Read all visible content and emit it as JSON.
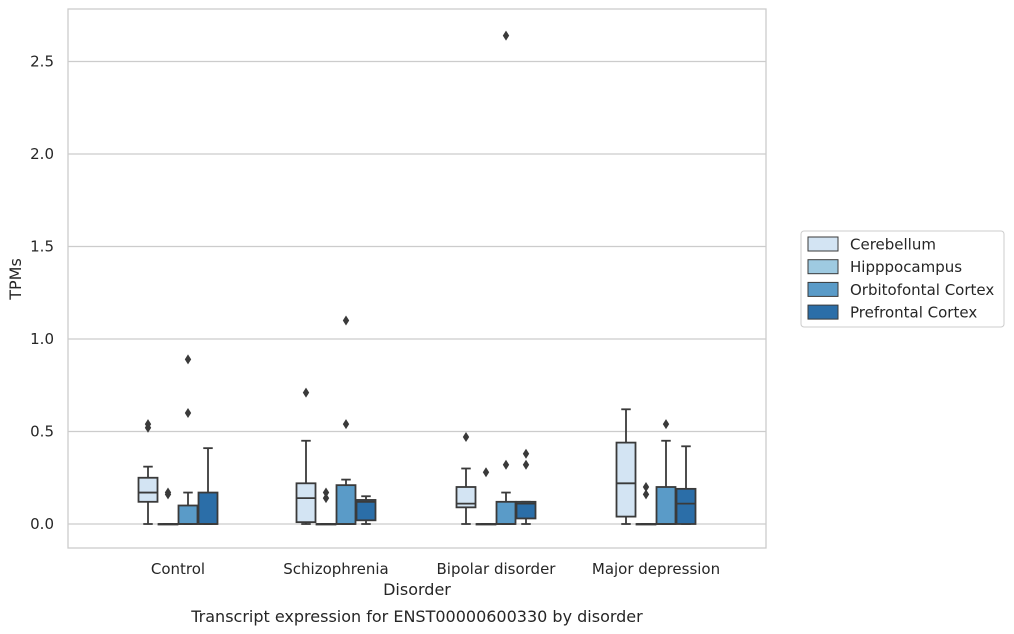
{
  "chart_data": {
    "type": "box",
    "title": "",
    "xlabel": "Disorder",
    "ylabel": "TPMs",
    "caption": "Transcript expression for ENST00000600330 by disorder",
    "ylim": [
      -0.13,
      2.78
    ],
    "yticks": [
      "0.0",
      "0.5",
      "1.0",
      "1.5",
      "2.0",
      "2.5"
    ],
    "grid": "horizontal",
    "legend_position": "right",
    "categories": [
      "Control",
      "Schizophrenia",
      "Bipolar disorder",
      "Major depression"
    ],
    "series": [
      {
        "name": "Cerebellum",
        "color": "#d3e4f3",
        "boxes": [
          {
            "whisker_low": 0.0,
            "q1": 0.12,
            "median": 0.17,
            "q3": 0.25,
            "whisker_high": 0.31,
            "outliers": [
              0.52,
              0.54
            ]
          },
          {
            "whisker_low": 0.0,
            "q1": 0.01,
            "median": 0.14,
            "q3": 0.22,
            "whisker_high": 0.45,
            "outliers": [
              0.71
            ]
          },
          {
            "whisker_low": 0.0,
            "q1": 0.09,
            "median": 0.11,
            "q3": 0.2,
            "whisker_high": 0.3,
            "outliers": [
              0.47
            ]
          },
          {
            "whisker_low": 0.0,
            "q1": 0.04,
            "median": 0.22,
            "q3": 0.44,
            "whisker_high": 0.62,
            "outliers": []
          }
        ]
      },
      {
        "name": "Hipppocampus",
        "color": "#9ecae1",
        "boxes": [
          {
            "whisker_low": 0.0,
            "q1": 0.0,
            "median": 0.0,
            "q3": 0.0,
            "whisker_high": 0.0,
            "outliers": [
              0.16,
              0.17
            ]
          },
          {
            "whisker_low": 0.0,
            "q1": 0.0,
            "median": 0.0,
            "q3": 0.0,
            "whisker_high": 0.0,
            "outliers": [
              0.14,
              0.17
            ]
          },
          {
            "whisker_low": 0.0,
            "q1": 0.0,
            "median": 0.0,
            "q3": 0.0,
            "whisker_high": 0.0,
            "outliers": [
              0.28
            ]
          },
          {
            "whisker_low": 0.0,
            "q1": 0.0,
            "median": 0.0,
            "q3": 0.0,
            "whisker_high": 0.0,
            "outliers": [
              0.16,
              0.2
            ]
          }
        ]
      },
      {
        "name": "Orbitofontal Cortex",
        "color": "#5a9bc8",
        "boxes": [
          {
            "whisker_low": 0.0,
            "q1": 0.0,
            "median": 0.0,
            "q3": 0.1,
            "whisker_high": 0.17,
            "outliers": [
              0.6,
              0.89
            ]
          },
          {
            "whisker_low": 0.0,
            "q1": 0.0,
            "median": 0.0,
            "q3": 0.21,
            "whisker_high": 0.24,
            "outliers": [
              0.54,
              1.1
            ]
          },
          {
            "whisker_low": 0.0,
            "q1": 0.0,
            "median": 0.0,
            "q3": 0.12,
            "whisker_high": 0.17,
            "outliers": [
              0.32,
              2.64
            ]
          },
          {
            "whisker_low": 0.0,
            "q1": 0.0,
            "median": 0.0,
            "q3": 0.2,
            "whisker_high": 0.45,
            "outliers": [
              0.54
            ]
          }
        ]
      },
      {
        "name": "Prefrontal Cortex",
        "color": "#2b6ea8",
        "boxes": [
          {
            "whisker_low": 0.0,
            "q1": 0.0,
            "median": 0.0,
            "q3": 0.17,
            "whisker_high": 0.41,
            "outliers": []
          },
          {
            "whisker_low": 0.0,
            "q1": 0.02,
            "median": 0.12,
            "q3": 0.13,
            "whisker_high": 0.15,
            "outliers": []
          },
          {
            "whisker_low": 0.0,
            "q1": 0.03,
            "median": 0.11,
            "q3": 0.12,
            "whisker_high": 0.12,
            "outliers": [
              0.32,
              0.38
            ]
          },
          {
            "whisker_low": 0.0,
            "q1": 0.0,
            "median": 0.11,
            "q3": 0.19,
            "whisker_high": 0.42,
            "outliers": []
          }
        ]
      }
    ]
  }
}
